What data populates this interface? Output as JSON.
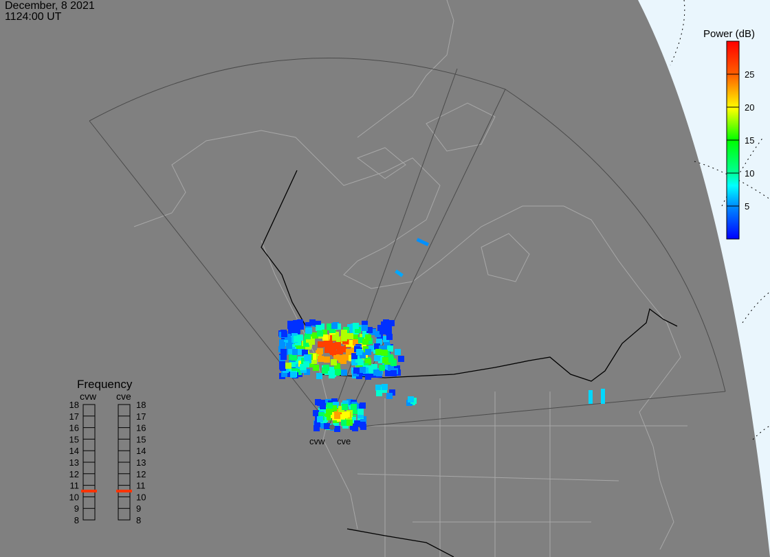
{
  "header": {
    "date": "December, 8 2021",
    "time": "1124:00 UT"
  },
  "colors": {
    "background": "#808080",
    "outside_map": "#eaf6fd",
    "coastline": "#a8a8a8",
    "border": "#000000",
    "fov": "#505050",
    "frequency_marker": "#ff3300"
  },
  "colorbar": {
    "title": "Power (dB)",
    "min": 0,
    "max": 30,
    "ticks": [
      5,
      10,
      15,
      20,
      25
    ],
    "tick_labels": [
      "5",
      "10",
      "15",
      "20",
      "25"
    ],
    "colormap": [
      "#0000ff",
      "#00a0ff",
      "#00ffff",
      "#00ff80",
      "#00ff00",
      "#80ff00",
      "#ffff00",
      "#ff8000",
      "#ff0000"
    ]
  },
  "radars": [
    {
      "code": "cvw",
      "frequency_mhz": 10.5
    },
    {
      "code": "cve",
      "frequency_mhz": 10.5
    }
  ],
  "frequency_panel": {
    "title": "Frequency",
    "min": 8,
    "max": 18,
    "labels": [
      "18",
      "17",
      "16",
      "15",
      "14",
      "13",
      "12",
      "11",
      "10",
      "9",
      "8"
    ]
  }
}
